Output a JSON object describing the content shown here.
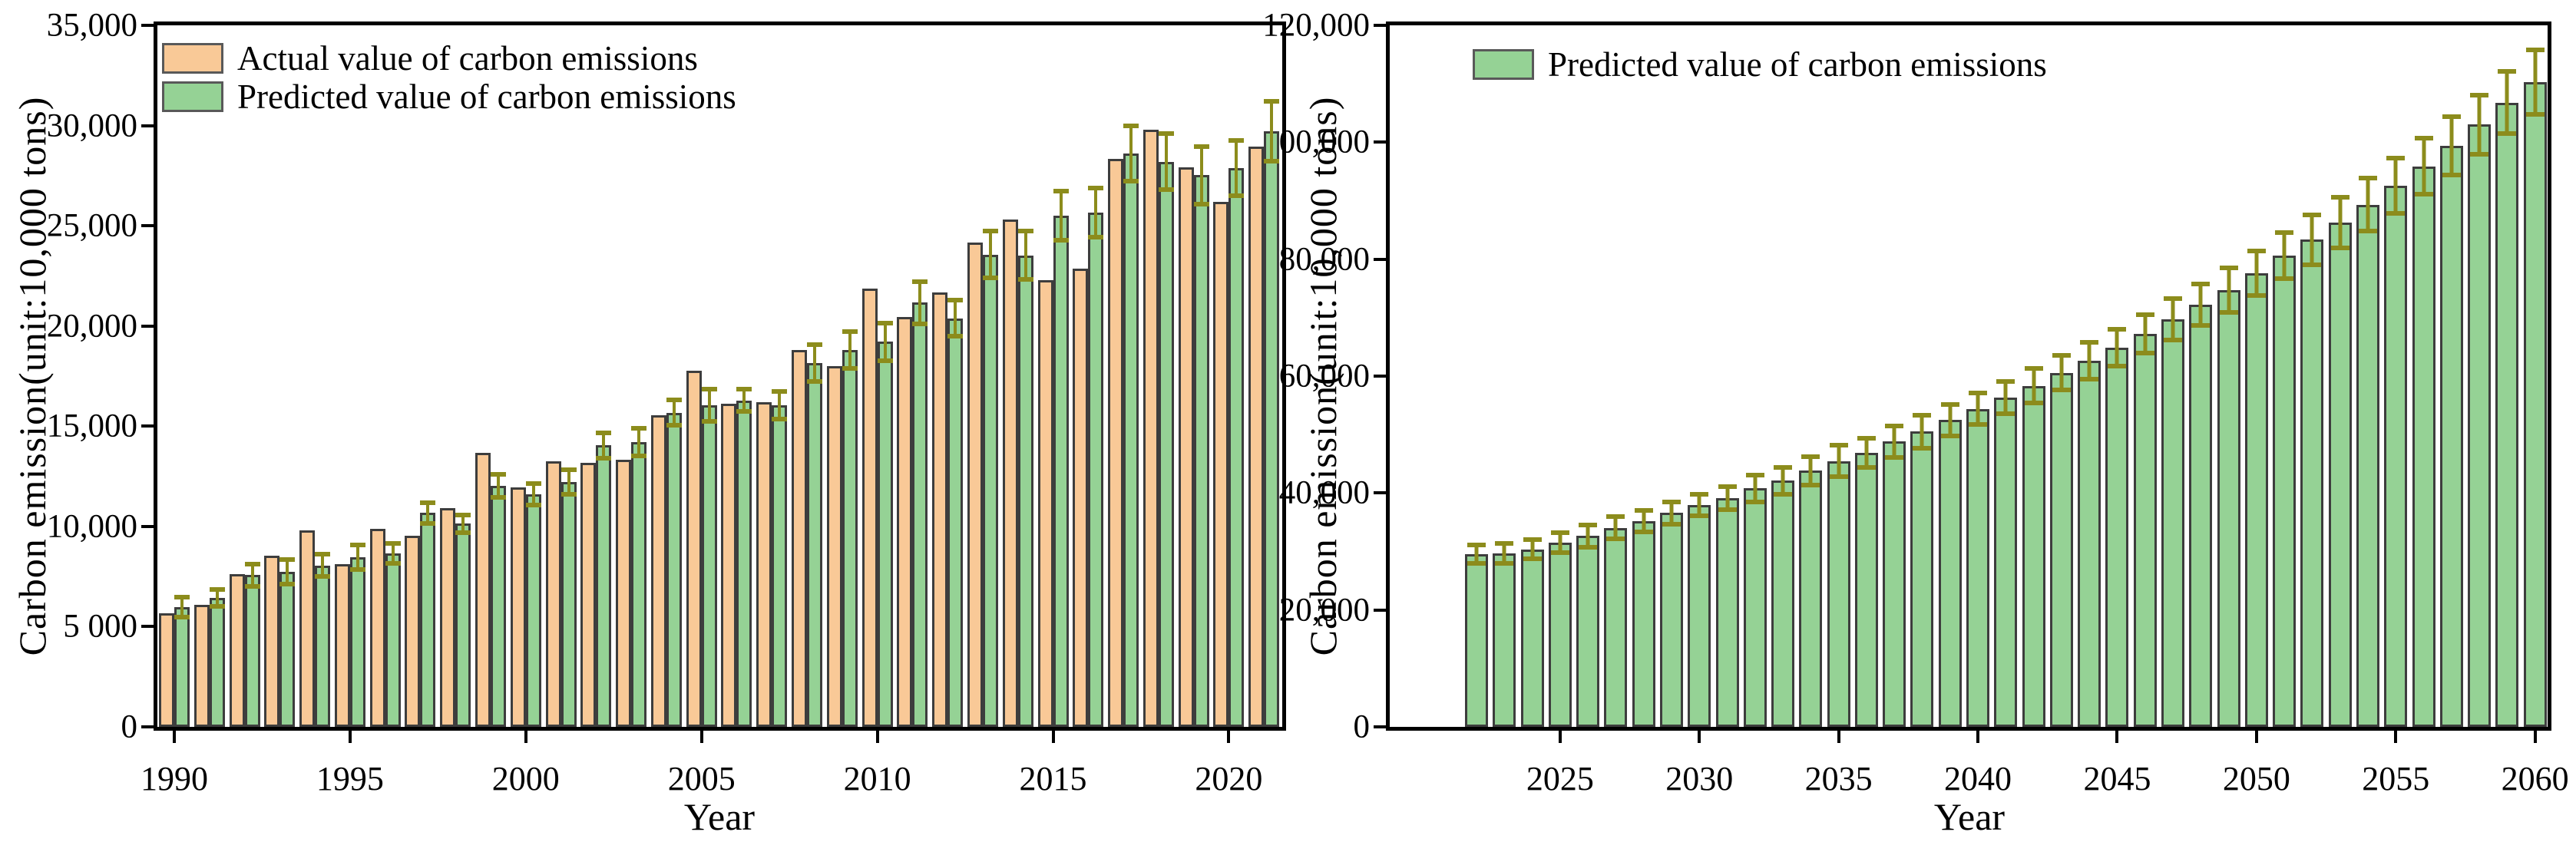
{
  "figure": {
    "background": "#ffffff",
    "colors": {
      "actual_fill": "#f9c997",
      "predicted_fill": "#95d295",
      "bar_border": "#3d3d3d",
      "error_bar": "#8c8c1c",
      "axis": "#000000"
    }
  },
  "chart_data": [
    {
      "type": "bar",
      "panel": "historical",
      "xlabel": "Year",
      "ylabel": "Carbon emission(unit:10,000 tons)",
      "ylim": [
        0,
        35000
      ],
      "grid": false,
      "legend_position": "top-left",
      "legend": [
        "Actual value of carbon emissions",
        "Predicted value of carbon emissions"
      ],
      "yticks": {
        "values": [
          0,
          5000,
          10000,
          15000,
          20000,
          25000,
          30000,
          35000
        ],
        "labels": [
          "0",
          "5 000",
          "10,000",
          "15,000",
          "20,000",
          "25,000",
          "30,000",
          "35,000"
        ]
      },
      "xticks": [
        1990,
        1995,
        2000,
        2005,
        2010,
        2015,
        2020
      ],
      "categories": [
        1990,
        1991,
        1992,
        1993,
        1994,
        1995,
        1996,
        1997,
        1998,
        1999,
        2000,
        2001,
        2002,
        2003,
        2004,
        2005,
        2006,
        2007,
        2008,
        2009,
        2010,
        2011,
        2012,
        2013,
        2014,
        2015,
        2016,
        2017,
        2018,
        2019,
        2020,
        2021
      ],
      "series": [
        {
          "name": "Actual value of carbon emissions",
          "values": [
            5660,
            6100,
            7640,
            8540,
            9810,
            8130,
            9890,
            9520,
            10910,
            13670,
            11960,
            13260,
            13190,
            13310,
            15550,
            17780,
            16120,
            16190,
            18800,
            18000,
            21860,
            20440,
            21660,
            24180,
            25330,
            22300,
            22880,
            28330,
            29790,
            27910,
            26200,
            28940
          ]
        },
        {
          "name": "Predicted value of carbon emissions",
          "values": [
            5980,
            6420,
            7570,
            7740,
            8060,
            8470,
            8670,
            10670,
            10130,
            12010,
            11600,
            12210,
            14040,
            14210,
            15680,
            16040,
            16290,
            16040,
            18140,
            18800,
            19220,
            21170,
            20390,
            23570,
            23520,
            25520,
            25640,
            28620,
            28200,
            27520,
            27890,
            29720
          ],
          "errors": [
            610,
            540,
            670,
            730,
            660,
            740,
            610,
            640,
            540,
            690,
            660,
            730,
            740,
            810,
            760,
            930,
            680,
            810,
            1030,
            1050,
            1050,
            1170,
            1030,
            1270,
            1320,
            1340,
            1340,
            1490,
            1520,
            1540,
            1490,
            1610
          ]
        }
      ]
    },
    {
      "type": "bar",
      "panel": "forecast",
      "xlabel": "Year",
      "ylabel": "Carbon emission(unit:10,000 tons)",
      "ylim": [
        0,
        120000
      ],
      "grid": false,
      "legend_position": "top-left",
      "legend": [
        "Predicted value of carbon emissions"
      ],
      "yticks": {
        "values": [
          0,
          20000,
          40000,
          60000,
          80000,
          100000,
          120000
        ],
        "labels": [
          "0",
          "20,000",
          "40,000",
          "60,000",
          "80,000",
          "100,000",
          "120,000"
        ]
      },
      "xticks": [
        2025,
        2030,
        2035,
        2040,
        2045,
        2050,
        2055,
        2060
      ],
      "categories": [
        2022,
        2023,
        2024,
        2025,
        2026,
        2027,
        2028,
        2029,
        2030,
        2031,
        2032,
        2033,
        2034,
        2035,
        2036,
        2037,
        2038,
        2039,
        2040,
        2041,
        2042,
        2043,
        2044,
        2045,
        2046,
        2047,
        2048,
        2049,
        2050,
        2051,
        2052,
        2053,
        2054,
        2055,
        2056,
        2057,
        2058,
        2059,
        2060
      ],
      "series": [
        {
          "name": "Predicted value of carbon emissions",
          "values": [
            29550,
            29700,
            30380,
            31560,
            32650,
            34070,
            35160,
            36580,
            37920,
            39100,
            40770,
            42110,
            43790,
            45460,
            46890,
            48800,
            50490,
            52490,
            54420,
            56340,
            58350,
            60530,
            62630,
            64890,
            67240,
            69750,
            72260,
            74760,
            77610,
            80630,
            83310,
            86240,
            89340,
            92530,
            95880,
            99390,
            103000,
            106760,
            110280
          ],
          "errors": [
            2000,
            2100,
            2010,
            2090,
            2260,
            2350,
            2260,
            2350,
            2270,
            2400,
            2680,
            2680,
            2850,
            3100,
            2850,
            3100,
            3180,
            3100,
            3100,
            3100,
            3360,
            3350,
            3520,
            3520,
            3680,
            3940,
            3950,
            4200,
            4200,
            4370,
            4600,
            4700,
            4900,
            5100,
            5200,
            5400,
            5500,
            5700,
            5900
          ]
        }
      ]
    }
  ]
}
